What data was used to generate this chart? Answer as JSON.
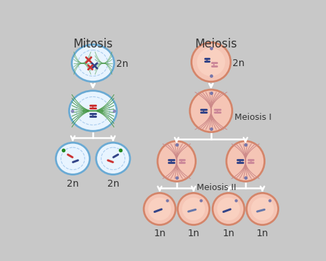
{
  "bg": "#c8c8c8",
  "title_mit": "Mitosis",
  "title_mei": "Meiosis",
  "lbl_mI": "Meiosis I",
  "lbl_mII": "Meiosis II",
  "lbl_2n": "2n",
  "lbl_1n": "1n",
  "blue_edge": "#6aaad4",
  "blue_fill": "#e8f4ff",
  "blue_inner_edge": "#aaccee",
  "pink_edge": "#d4856a",
  "pink_fill": "#f5c5b5",
  "pink_inner_fill": "#f9d0c0",
  "spindle_blue": "#4a9a4a",
  "spindle_pink": "#cc8888",
  "spindle_pink2": "#cc7777",
  "chr_red": "#cc3333",
  "chr_blue": "#334488",
  "chr_green": "#228822",
  "chr_pink_light": "#cc8899",
  "chr_blue_light": "#6677aa",
  "pole_color": "#8888bb",
  "arrow_color": "#ffffff",
  "text_color": "#333333",
  "title_fs": 12,
  "lbl_fs": 10,
  "note_fs": 9
}
